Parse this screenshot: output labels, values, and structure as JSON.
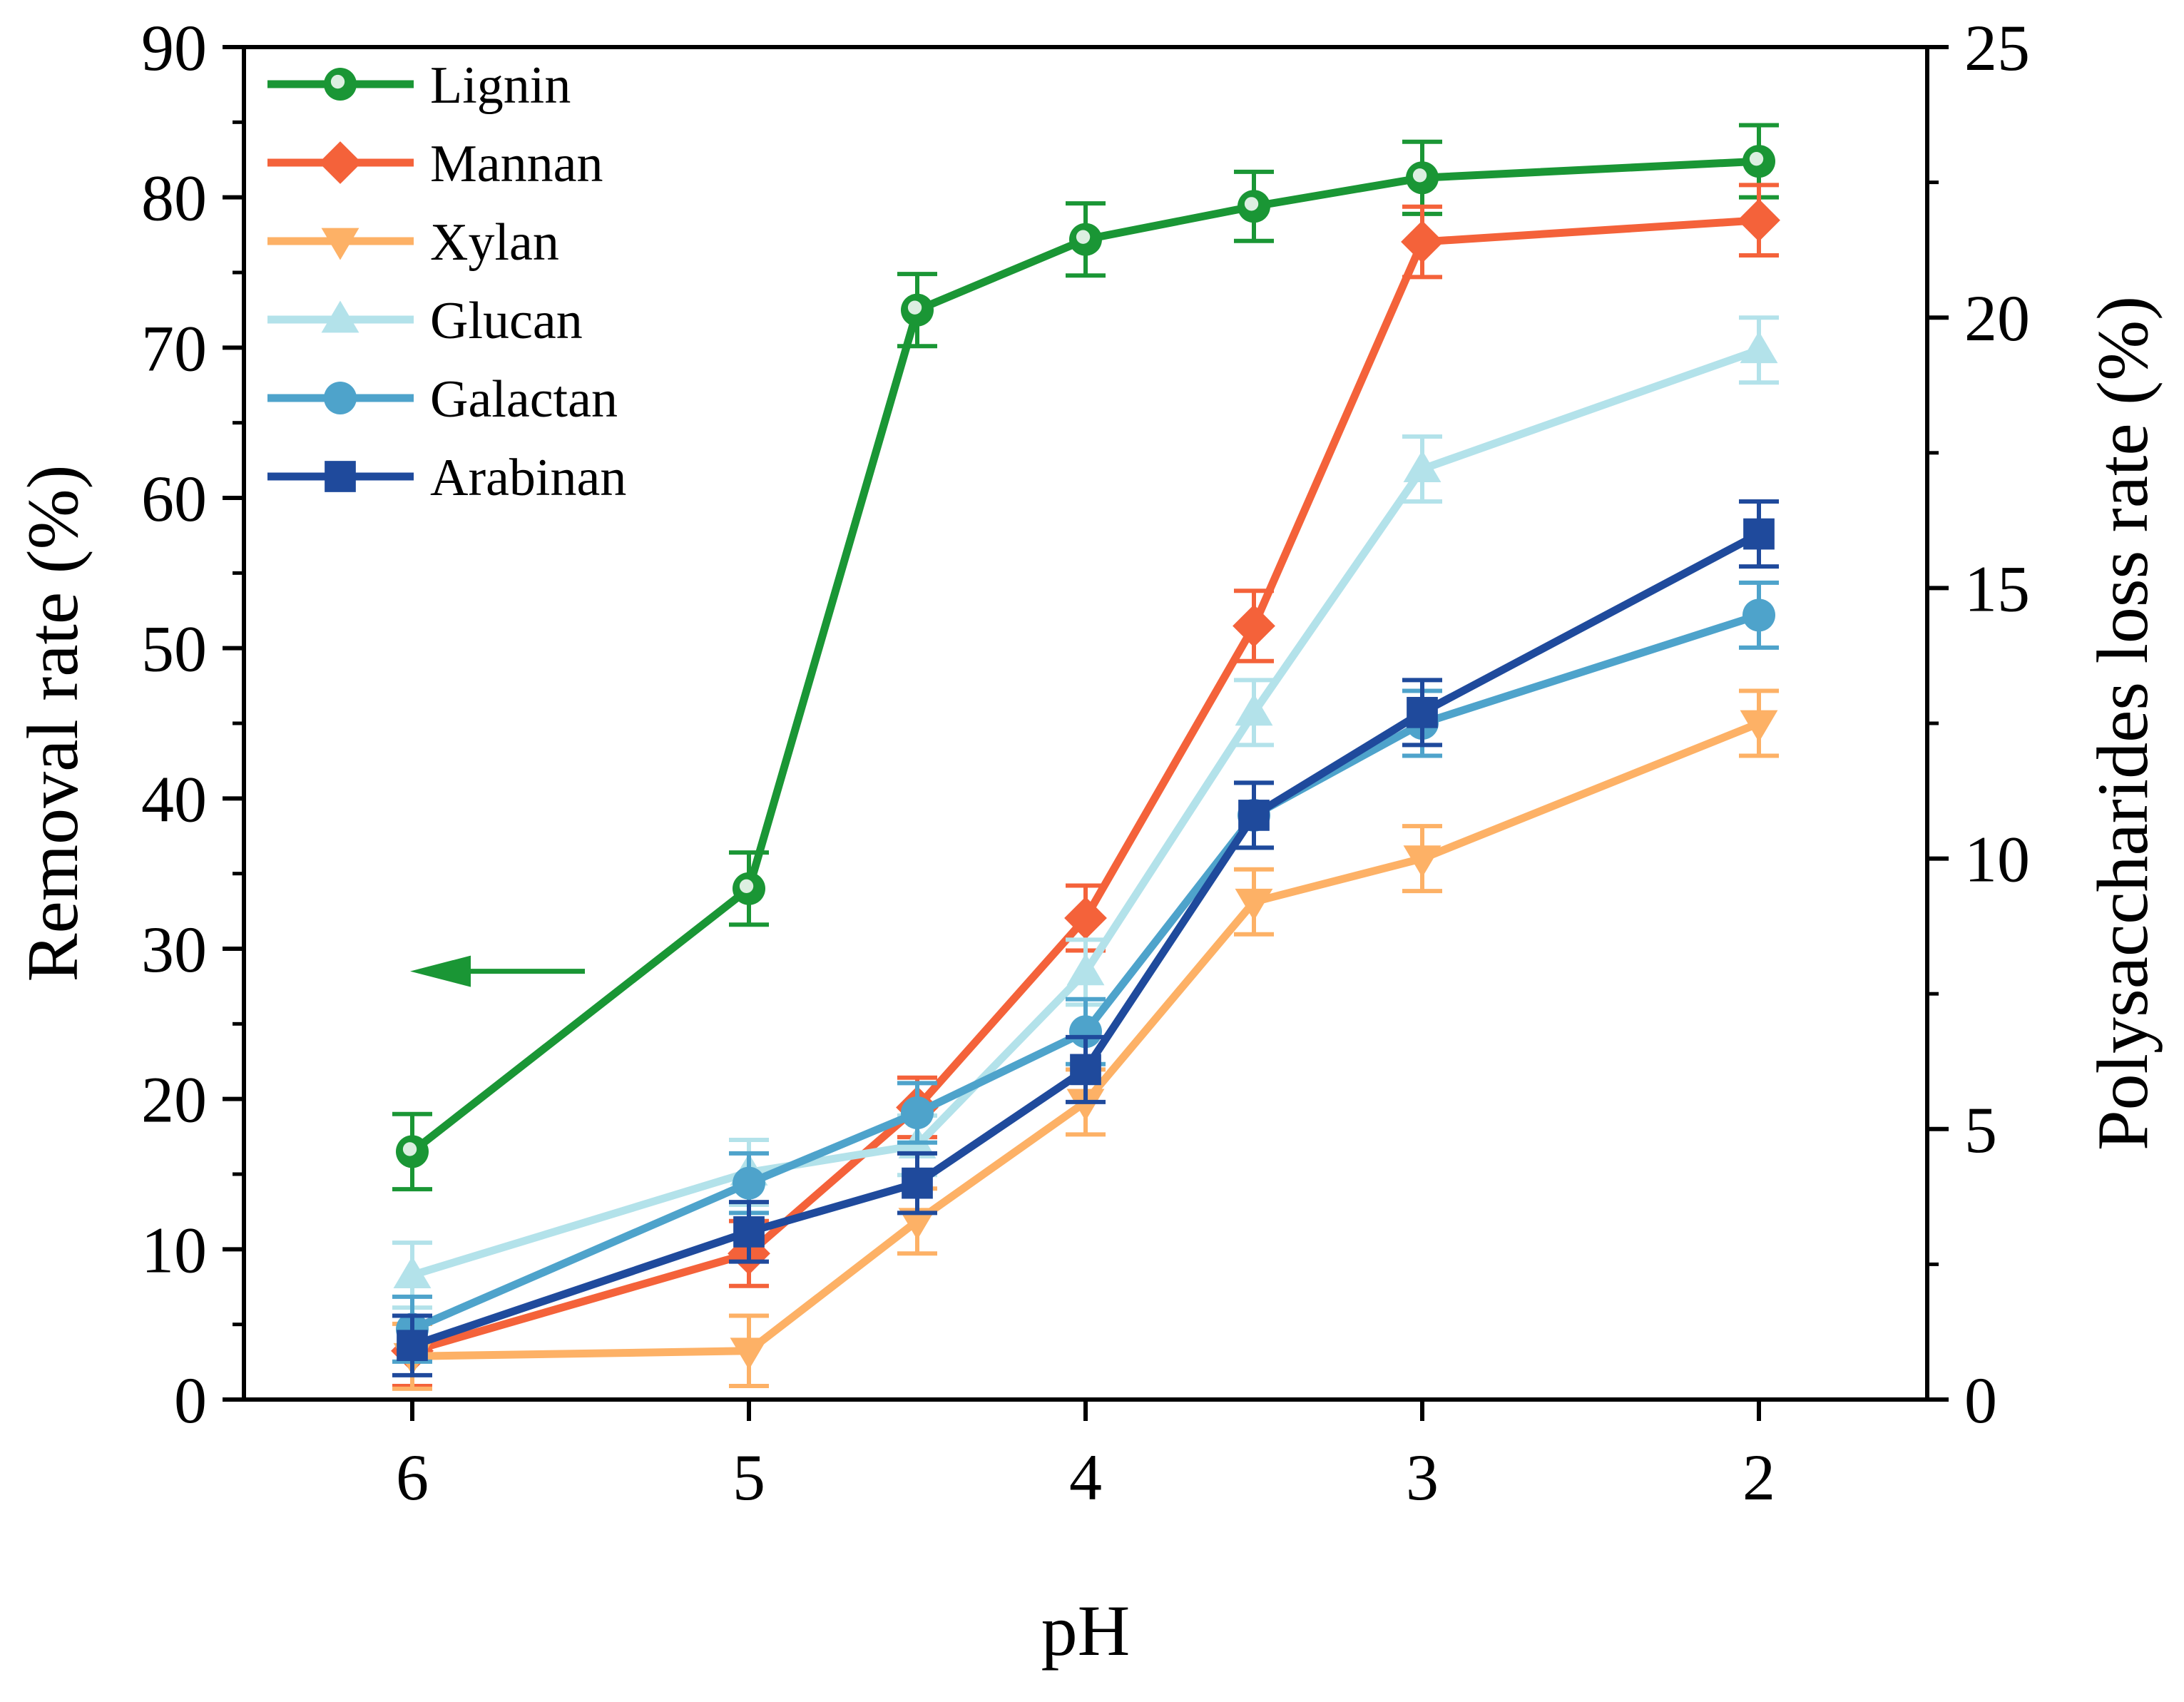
{
  "chart_data": {
    "type": "line",
    "xlabel": "pH",
    "ylabel": "Removal rate (%)",
    "y2label": "Polysaccharides loss rate (%)",
    "x_ticks": [
      "6",
      "5",
      "4",
      "3",
      "2"
    ],
    "x_range": [
      6.5,
      1.5
    ],
    "ylim": [
      0,
      90
    ],
    "y_ticks": [
      "0",
      "10",
      "20",
      "30",
      "40",
      "50",
      "60",
      "70",
      "80",
      "90"
    ],
    "y2lim": [
      0,
      25
    ],
    "y2_ticks": [
      "0",
      "5",
      "10",
      "15",
      "20",
      "25"
    ],
    "annotation": "arrow pointing left: Lignin uses the left axis",
    "series": [
      {
        "name": "Lignin",
        "axis": "left",
        "color": "#1a9635",
        "marker": "circle-highlight",
        "x": [
          6,
          5,
          4.5,
          4,
          3.5,
          3,
          2
        ],
        "y": [
          16.5,
          34.0,
          72.5,
          77.2,
          79.4,
          81.3,
          82.4
        ],
        "err": [
          2.5,
          2.4,
          2.4,
          2.4,
          2.3,
          2.4,
          2.4
        ]
      },
      {
        "name": "Mannan",
        "axis": "right",
        "color": "#f4623a",
        "marker": "diamond",
        "x": [
          6,
          5,
          4.5,
          4,
          3.5,
          3,
          2
        ],
        "y": [
          0.9,
          2.7,
          5.4,
          8.9,
          14.3,
          21.4,
          21.8
        ],
        "err": [
          0.65,
          0.6,
          0.55,
          0.6,
          0.65,
          0.65,
          0.65
        ]
      },
      {
        "name": "Xylan",
        "axis": "right",
        "color": "#fdb166",
        "marker": "triangle-down",
        "x": [
          6,
          5,
          4.5,
          4,
          3.5,
          3,
          2
        ],
        "y": [
          0.8,
          0.9,
          3.3,
          5.5,
          9.2,
          10.0,
          12.5
        ],
        "err": [
          0.6,
          0.65,
          0.6,
          0.6,
          0.6,
          0.6,
          0.6
        ]
      },
      {
        "name": "Glucan",
        "axis": "right",
        "color": "#b3e2ea",
        "marker": "triangle-up",
        "x": [
          6,
          5,
          4.5,
          4,
          3.5,
          3,
          2
        ],
        "y": [
          2.3,
          4.2,
          4.7,
          7.9,
          12.7,
          17.2,
          19.4
        ],
        "err": [
          0.6,
          0.6,
          0.55,
          0.6,
          0.6,
          0.6,
          0.6
        ]
      },
      {
        "name": "Galactan",
        "axis": "right",
        "color": "#4ea3cb",
        "marker": "circle",
        "x": [
          6,
          5,
          4.5,
          4,
          3.5,
          3,
          2
        ],
        "y": [
          1.3,
          4.0,
          5.3,
          6.8,
          10.8,
          12.5,
          14.5
        ],
        "err": [
          0.6,
          0.55,
          0.55,
          0.6,
          0.6,
          0.6,
          0.6
        ]
      },
      {
        "name": "Arabinan",
        "axis": "right",
        "color": "#1f4a9c",
        "marker": "square",
        "x": [
          6,
          5,
          4.5,
          4,
          3.5,
          3,
          2
        ],
        "y": [
          1.0,
          3.1,
          4.0,
          6.1,
          10.8,
          12.7,
          16.0
        ],
        "err": [
          0.55,
          0.55,
          0.55,
          0.6,
          0.6,
          0.6,
          0.6
        ]
      }
    ]
  }
}
